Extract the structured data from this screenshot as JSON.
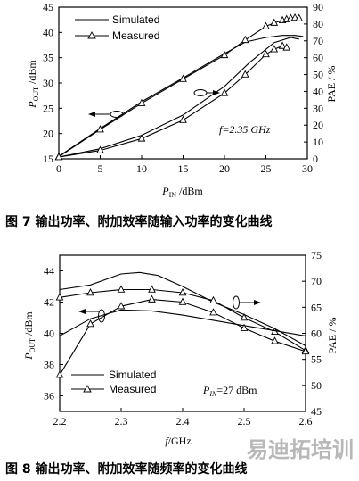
{
  "figure7": {
    "caption": "图 7  输出功率、附加效率随输入功率的变化曲线",
    "legend": {
      "simulated": "Simulated",
      "measured": "Measured"
    },
    "annotation": "f=2.35 GHz"
  },
  "figure8": {
    "caption": "图 8  输出功率、附加效率随频率的变化曲线",
    "legend": {
      "simulated": "Simulated",
      "measured": "Measured"
    },
    "annotation": "P_IN=27 dBm"
  },
  "watermark": "易迪拓培训",
  "chart_data": [
    {
      "type": "line",
      "xlabel": "P_IN /dBm",
      "ylabel": "P_OUT /dBm",
      "y2label": "PAE / %",
      "xlim": [
        0,
        30
      ],
      "ylim": [
        15,
        45
      ],
      "y2lim": [
        0,
        90
      ],
      "xticks": [
        0,
        5,
        10,
        15,
        20,
        25,
        30
      ],
      "yticks": [
        15,
        20,
        25,
        30,
        35,
        40,
        45
      ],
      "y2ticks": [
        0,
        10,
        20,
        30,
        40,
        50,
        60,
        70,
        80,
        90
      ],
      "grid": false,
      "legend_position": "top-left",
      "series": [
        {
          "name": "Simulated",
          "axis": "left",
          "style": "line",
          "x": [
            0,
            5,
            10,
            15,
            20,
            22.5,
            25,
            27,
            28.5,
            29.5
          ],
          "y": [
            15.5,
            21.0,
            26.3,
            31.0,
            35.8,
            38.1,
            39.0,
            39.4,
            39.4,
            39.2
          ]
        },
        {
          "name": "Measured",
          "axis": "left",
          "style": "line-triangle",
          "x": [
            0,
            5,
            10,
            15,
            20,
            22.5,
            25,
            26,
            27,
            27.5,
            28,
            28.5,
            29
          ],
          "y": [
            15.4,
            20.8,
            26.0,
            30.8,
            35.5,
            38.5,
            41.2,
            41.9,
            42.4,
            42.6,
            42.8,
            42.9,
            42.8
          ]
        },
        {
          "name": "Simulated",
          "axis": "right",
          "style": "line",
          "x": [
            0,
            5,
            10,
            15,
            20,
            23,
            26,
            28,
            29
          ],
          "y": [
            1,
            6,
            14,
            26,
            43,
            57,
            69,
            72,
            71
          ]
        },
        {
          "name": "Measured",
          "axis": "right",
          "style": "line-triangle",
          "x": [
            0,
            5,
            10,
            15,
            20,
            22.5,
            25,
            26,
            27,
            27.5
          ],
          "y": [
            1,
            5,
            12,
            23,
            39,
            50,
            62,
            65,
            67,
            66
          ]
        }
      ]
    },
    {
      "type": "line",
      "xlabel": "f/GHz",
      "ylabel": "P_OUT /dBm",
      "y2label": "PAE / %",
      "xlim": [
        2.2,
        2.6
      ],
      "ylim": [
        35,
        45
      ],
      "y2lim": [
        45,
        75
      ],
      "xticks": [
        2.2,
        2.3,
        2.4,
        2.5,
        2.6
      ],
      "yticks": [
        36,
        38,
        40,
        42,
        44
      ],
      "y2ticks": [
        45,
        50,
        55,
        60,
        65,
        70,
        75
      ],
      "grid": false,
      "legend_position": "bottom-left",
      "series": [
        {
          "name": "Simulated",
          "axis": "left",
          "style": "line",
          "x": [
            2.2,
            2.25,
            2.3,
            2.33,
            2.36,
            2.4,
            2.45,
            2.5,
            2.55,
            2.6
          ],
          "y": [
            42.8,
            43.1,
            43.8,
            43.9,
            43.7,
            43.0,
            42.0,
            41.2,
            40.3,
            39.2
          ]
        },
        {
          "name": "Measured",
          "axis": "left",
          "style": "line-triangle",
          "x": [
            2.2,
            2.25,
            2.3,
            2.35,
            2.4,
            2.45,
            2.5,
            2.55,
            2.6
          ],
          "y": [
            42.3,
            42.6,
            42.8,
            42.8,
            42.6,
            42.1,
            41.0,
            40.1,
            38.9
          ]
        },
        {
          "name": "Simulated",
          "axis": "right",
          "style": "line",
          "x": [
            2.2,
            2.25,
            2.3,
            2.35,
            2.4,
            2.45,
            2.5,
            2.55,
            2.6
          ],
          "y": [
            59.5,
            62.8,
            64.5,
            64.3,
            63.5,
            62.5,
            61.5,
            60.5,
            59.5
          ]
        },
        {
          "name": "Measured",
          "axis": "right",
          "style": "line-triangle",
          "x": [
            2.2,
            2.25,
            2.3,
            2.35,
            2.4,
            2.45,
            2.5,
            2.55,
            2.6
          ],
          "y": [
            52.0,
            61.8,
            65.2,
            66.5,
            66.0,
            64.0,
            61.0,
            58.5,
            56.5
          ]
        }
      ]
    }
  ]
}
